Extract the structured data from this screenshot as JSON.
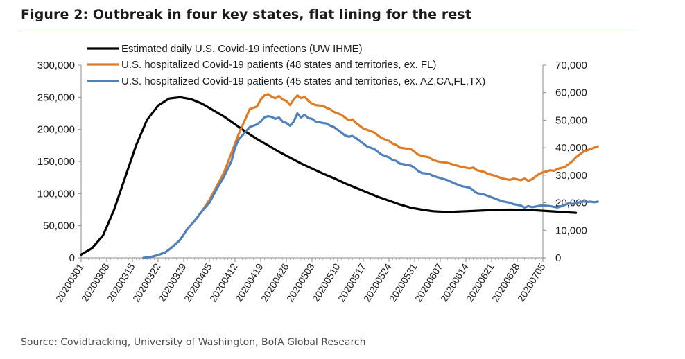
{
  "figure": {
    "title": "Figure 2: Outbreak in four key states, flat lining for the rest",
    "source": "Source: Covidtracking, University of Washington, BofA Global Research"
  },
  "chart_data": {
    "type": "line",
    "title": "Figure 2: Outbreak in four key states, flat lining for the rest",
    "x_start": "20200301",
    "x_ticks": [
      "20200301",
      "20200308",
      "20200315",
      "20200322",
      "20200329",
      "20200405",
      "20200412",
      "20200419",
      "20200426",
      "20200503",
      "20200510",
      "20200517",
      "20200524",
      "20200531",
      "20200607",
      "20200614",
      "20200621",
      "20200628",
      "20200705"
    ],
    "left_axis": {
      "ylim": [
        0,
        300000
      ],
      "ticks": [
        0,
        50000,
        100000,
        150000,
        200000,
        250000,
        300000
      ],
      "tick_labels": [
        "0",
        "50,000",
        "100,000",
        "150,000",
        "200,000",
        "250,000",
        "300,000"
      ]
    },
    "right_axis": {
      "ylim": [
        0,
        70000
      ],
      "ticks": [
        0,
        10000,
        20000,
        30000,
        40000,
        50000,
        60000,
        70000
      ],
      "tick_labels": [
        "0",
        "10,000",
        "20,000",
        "30,000",
        "40,000",
        "50,000",
        "60,000",
        "70,000"
      ]
    },
    "legend_position": "top",
    "series": [
      {
        "name": "Estimated daily U.S. Covid-19 infections (UW IHME)",
        "axis": "left",
        "color": "#000000",
        "points": [
          [
            0,
            5000
          ],
          [
            3,
            15000
          ],
          [
            6,
            35000
          ],
          [
            9,
            75000
          ],
          [
            12,
            125000
          ],
          [
            15,
            175000
          ],
          [
            18,
            215000
          ],
          [
            21,
            237000
          ],
          [
            24,
            248000
          ],
          [
            27,
            250000
          ],
          [
            30,
            247000
          ],
          [
            33,
            240000
          ],
          [
            36,
            230000
          ],
          [
            39,
            220000
          ],
          [
            42,
            208000
          ],
          [
            45,
            196000
          ],
          [
            48,
            185000
          ],
          [
            51,
            175000
          ],
          [
            54,
            165000
          ],
          [
            57,
            156000
          ],
          [
            60,
            147000
          ],
          [
            63,
            139000
          ],
          [
            66,
            131000
          ],
          [
            69,
            124000
          ],
          [
            72,
            116000
          ],
          [
            75,
            109000
          ],
          [
            78,
            102000
          ],
          [
            81,
            95000
          ],
          [
            84,
            89000
          ],
          [
            87,
            83000
          ],
          [
            90,
            78000
          ],
          [
            93,
            75000
          ],
          [
            96,
            72500
          ],
          [
            99,
            71500
          ],
          [
            102,
            71800
          ],
          [
            105,
            72500
          ],
          [
            108,
            73300
          ],
          [
            111,
            74000
          ],
          [
            114,
            74600
          ],
          [
            117,
            75000
          ],
          [
            120,
            74800
          ],
          [
            123,
            74200
          ],
          [
            126,
            73300
          ],
          [
            129,
            72200
          ],
          [
            132,
            71000
          ],
          [
            135,
            70000
          ]
        ]
      },
      {
        "name": "U.S. hospitalized Covid-19 patients (48 states and territories, ex. FL)",
        "axis": "right",
        "color": "#e07b24",
        "points": [
          [
            17,
            0
          ],
          [
            19,
            300
          ],
          [
            21,
            1000
          ],
          [
            23,
            2000
          ],
          [
            25,
            4000
          ],
          [
            27,
            6500
          ],
          [
            29,
            10500
          ],
          [
            31,
            13500
          ],
          [
            33,
            17000
          ],
          [
            35,
            21000
          ],
          [
            37,
            26000
          ],
          [
            39,
            31000
          ],
          [
            41,
            38000
          ],
          [
            43,
            45000
          ],
          [
            45,
            51000
          ],
          [
            46,
            54000
          ],
          [
            48,
            55000
          ],
          [
            49,
            57500
          ],
          [
            50,
            59000
          ],
          [
            51,
            59500
          ],
          [
            52,
            58500
          ],
          [
            53,
            58000
          ],
          [
            54,
            58800
          ],
          [
            55,
            57500
          ],
          [
            56,
            57000
          ],
          [
            57,
            55500
          ],
          [
            58,
            57500
          ],
          [
            59,
            59000
          ],
          [
            60,
            58000
          ],
          [
            61,
            58500
          ],
          [
            62,
            57000
          ],
          [
            63,
            56000
          ],
          [
            64,
            55500
          ],
          [
            66,
            55200
          ],
          [
            67,
            54500
          ],
          [
            68,
            54000
          ],
          [
            69,
            53000
          ],
          [
            70,
            52500
          ],
          [
            71,
            52000
          ],
          [
            72,
            51000
          ],
          [
            73,
            50000
          ],
          [
            74,
            50300
          ],
          [
            75,
            49000
          ],
          [
            76,
            48000
          ],
          [
            77,
            47000
          ],
          [
            78,
            46500
          ],
          [
            80,
            45500
          ],
          [
            81,
            44500
          ],
          [
            82,
            43500
          ],
          [
            84,
            42500
          ],
          [
            85,
            41500
          ],
          [
            86,
            41000
          ],
          [
            87,
            40000
          ],
          [
            88,
            39800
          ],
          [
            90,
            39500
          ],
          [
            91,
            38500
          ],
          [
            92,
            37500
          ],
          [
            93,
            37000
          ],
          [
            95,
            36500
          ],
          [
            96,
            35500
          ],
          [
            98,
            34800
          ],
          [
            100,
            34500
          ],
          [
            102,
            33700
          ],
          [
            104,
            33000
          ],
          [
            106,
            32500
          ],
          [
            107,
            32800
          ],
          [
            108,
            31800
          ],
          [
            110,
            31200
          ],
          [
            111,
            30500
          ],
          [
            113,
            29800
          ],
          [
            115,
            28800
          ],
          [
            117,
            28300
          ],
          [
            118,
            28800
          ],
          [
            120,
            28200
          ],
          [
            121,
            28800
          ],
          [
            122,
            28000
          ],
          [
            123,
            28500
          ],
          [
            124,
            29500
          ],
          [
            125,
            30500
          ],
          [
            126,
            31000
          ],
          [
            128,
            31800
          ],
          [
            129,
            31600
          ],
          [
            130,
            32300
          ],
          [
            132,
            33000
          ],
          [
            133,
            34000
          ],
          [
            134,
            35000
          ],
          [
            135,
            36500
          ],
          [
            136,
            37500
          ],
          [
            137,
            38500
          ],
          [
            138,
            39000
          ],
          [
            139,
            39500
          ],
          [
            140,
            40000
          ],
          [
            141,
            40500
          ]
        ]
      },
      {
        "name": "U.S. hospitalized Covid-19 patients (45 states and territories, ex. AZ,CA,FL,TX)",
        "axis": "right",
        "color": "#4f81bd",
        "points": [
          [
            17,
            0
          ],
          [
            19,
            300
          ],
          [
            21,
            1000
          ],
          [
            23,
            2000
          ],
          [
            25,
            4000
          ],
          [
            27,
            6500
          ],
          [
            29,
            10500
          ],
          [
            31,
            13500
          ],
          [
            33,
            17000
          ],
          [
            35,
            20000
          ],
          [
            37,
            25000
          ],
          [
            39,
            29500
          ],
          [
            41,
            35000
          ],
          [
            42,
            40000
          ],
          [
            43,
            43000
          ],
          [
            44,
            44500
          ],
          [
            45,
            46000
          ],
          [
            46,
            47500
          ],
          [
            48,
            48500
          ],
          [
            49,
            49500
          ],
          [
            50,
            51000
          ],
          [
            51,
            51500
          ],
          [
            52,
            51200
          ],
          [
            53,
            50500
          ],
          [
            54,
            51000
          ],
          [
            55,
            49500
          ],
          [
            56,
            49000
          ],
          [
            57,
            48000
          ],
          [
            58,
            49500
          ],
          [
            59,
            52500
          ],
          [
            60,
            51000
          ],
          [
            61,
            52000
          ],
          [
            62,
            50800
          ],
          [
            63,
            50500
          ],
          [
            64,
            49500
          ],
          [
            66,
            49000
          ],
          [
            67,
            48800
          ],
          [
            68,
            48000
          ],
          [
            69,
            47500
          ],
          [
            70,
            46500
          ],
          [
            71,
            45500
          ],
          [
            72,
            44500
          ],
          [
            73,
            44000
          ],
          [
            74,
            44300
          ],
          [
            75,
            43500
          ],
          [
            76,
            42500
          ],
          [
            77,
            41500
          ],
          [
            78,
            40500
          ],
          [
            80,
            39500
          ],
          [
            81,
            38500
          ],
          [
            82,
            37500
          ],
          [
            84,
            36500
          ],
          [
            85,
            35500
          ],
          [
            86,
            35200
          ],
          [
            87,
            34200
          ],
          [
            88,
            34000
          ],
          [
            90,
            33500
          ],
          [
            91,
            32700
          ],
          [
            92,
            31500
          ],
          [
            93,
            30800
          ],
          [
            95,
            30500
          ],
          [
            96,
            29800
          ],
          [
            98,
            29000
          ],
          [
            100,
            28200
          ],
          [
            102,
            27000
          ],
          [
            104,
            26000
          ],
          [
            106,
            25500
          ],
          [
            107,
            24500
          ],
          [
            108,
            23500
          ],
          [
            110,
            23000
          ],
          [
            111,
            22500
          ],
          [
            113,
            21500
          ],
          [
            115,
            20500
          ],
          [
            117,
            20000
          ],
          [
            118,
            19500
          ],
          [
            120,
            19000
          ],
          [
            121,
            18200
          ],
          [
            122,
            18800
          ],
          [
            123,
            18400
          ],
          [
            124,
            18600
          ],
          [
            125,
            18900
          ],
          [
            126,
            19000
          ],
          [
            128,
            18800
          ],
          [
            129,
            18500
          ],
          [
            130,
            18300
          ],
          [
            132,
            19200
          ],
          [
            133,
            19800
          ],
          [
            134,
            19600
          ],
          [
            135,
            19800
          ],
          [
            136,
            20200
          ],
          [
            137,
            20500
          ],
          [
            138,
            20300
          ],
          [
            139,
            20400
          ],
          [
            140,
            20200
          ],
          [
            141,
            20400
          ]
        ]
      }
    ]
  }
}
